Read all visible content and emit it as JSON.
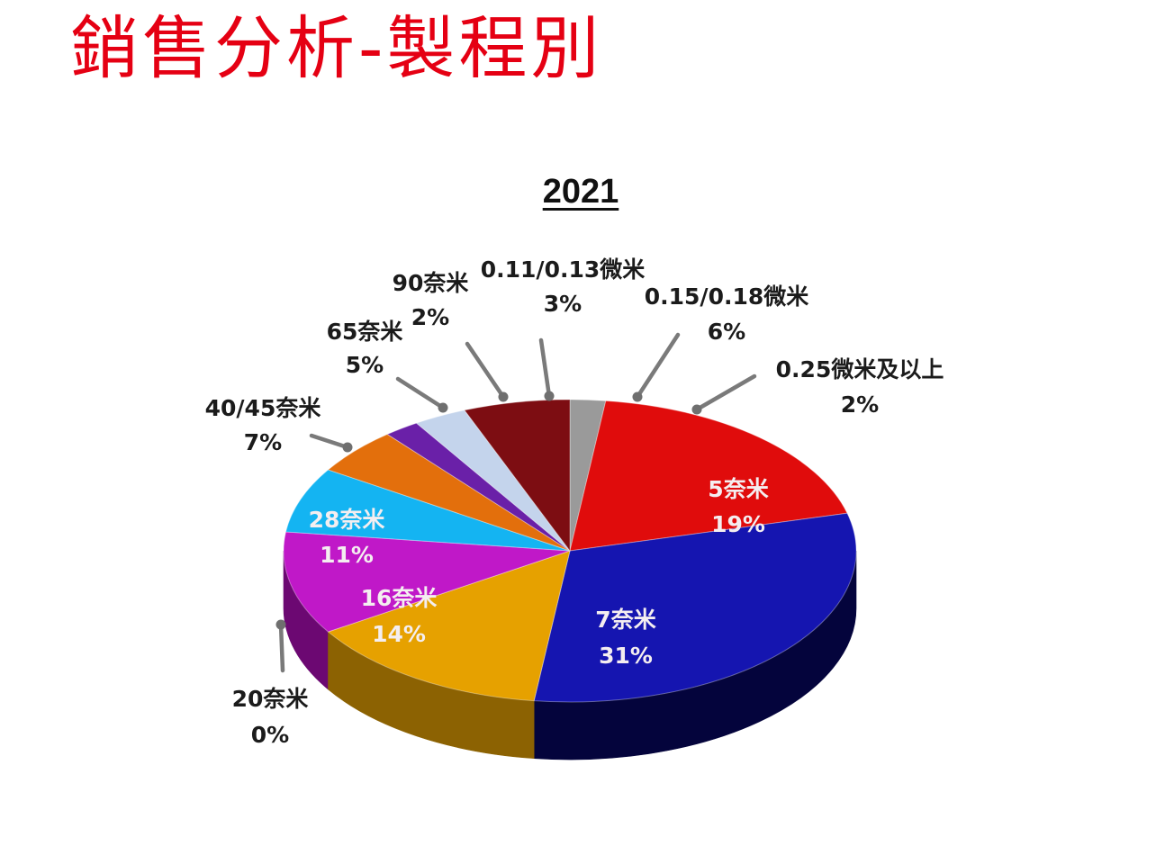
{
  "slide": {
    "title": "銷售分析-製程別"
  },
  "chart_data": {
    "type": "pie",
    "title": "2021",
    "categories": [
      "0.25微米及以上",
      "5奈米",
      "7奈米",
      "16奈米",
      "20奈米",
      "28奈米",
      "40/45奈米",
      "65奈米",
      "90奈米",
      "0.11/0.13微米",
      "0.15/0.18微米"
    ],
    "values": [
      2,
      19,
      31,
      14,
      0,
      11,
      7,
      5,
      2,
      3,
      6
    ],
    "labels": [
      "2%",
      "19%",
      "31%",
      "14%",
      "0%",
      "11%",
      "7%",
      "5%",
      "2%",
      "3%",
      "6%"
    ],
    "colors": [
      "#9a9a9a",
      "#e00c0c",
      "#1515b0",
      "#e6a100",
      "#8a8a8a",
      "#c018c8",
      "#14b4f2",
      "#e36f0c",
      "#6a20a8",
      "#c4d4ec",
      "#7d0d12"
    ],
    "side_colors": [
      "#5f5f5f",
      "#8e0607",
      "#04043c",
      "#8c6202",
      "#555555",
      "#6c0872",
      "#0a6e98",
      "#8a4206",
      "#3c0f66",
      "#7f8da6",
      "#4a0508"
    ]
  }
}
